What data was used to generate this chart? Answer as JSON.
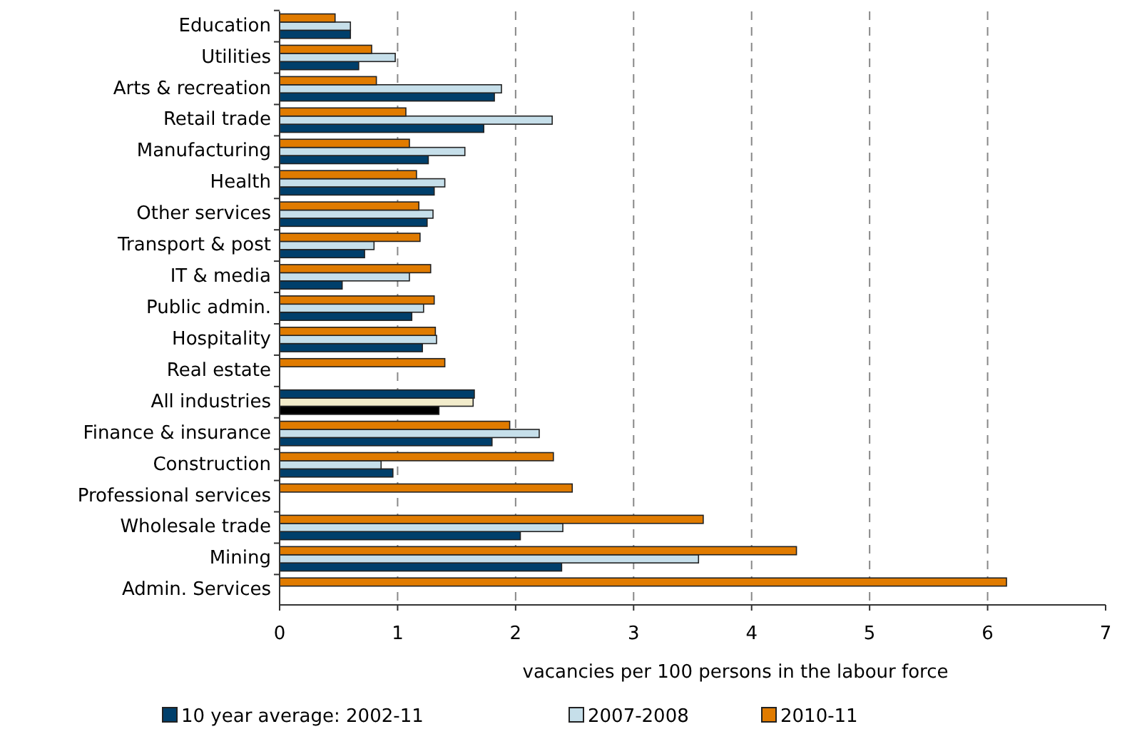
{
  "chart_data": {
    "type": "bar",
    "orientation": "horizontal",
    "xlabel": "vacancies per 100 persons in the labour force",
    "categories": [
      "Education",
      "Utilities",
      "Arts & recreation",
      "Retail trade",
      "Manufacturing",
      "Health",
      "Other services",
      "Transport & post",
      "IT & media",
      "Public admin.",
      "Hospitality",
      "Real estate",
      "All industries",
      "Finance & insurance",
      "Construction",
      "Professional services",
      "Wholesale trade",
      "Mining",
      "Admin. Services"
    ],
    "series": [
      {
        "name": "10 year average: 2002-11",
        "color": "#003f6b",
        "colors": [
          "#003f6b",
          "#003f6b",
          "#003f6b",
          "#003f6b",
          "#003f6b",
          "#003f6b",
          "#003f6b",
          "#003f6b",
          "#003f6b",
          "#003f6b",
          "#003f6b",
          null,
          "#000000",
          "#003f6b",
          "#003f6b",
          null,
          "#003f6b",
          "#003f6b",
          null
        ],
        "values": [
          0.6,
          0.67,
          1.82,
          1.73,
          1.26,
          1.31,
          1.25,
          0.72,
          0.53,
          1.12,
          1.21,
          null,
          1.35,
          1.8,
          0.96,
          null,
          2.04,
          2.39,
          null
        ]
      },
      {
        "name": "2007-2008",
        "color": "#c6dfea",
        "colors": [
          "#c6dfea",
          "#c6dfea",
          "#c6dfea",
          "#c6dfea",
          "#c6dfea",
          "#c6dfea",
          "#c6dfea",
          "#c6dfea",
          "#c6dfea",
          "#c6dfea",
          "#c6dfea",
          null,
          "#f2eccb",
          "#c6dfea",
          "#c6dfea",
          null,
          "#c6dfea",
          "#c6dfea",
          null
        ],
        "values": [
          0.6,
          0.98,
          1.88,
          2.31,
          1.57,
          1.4,
          1.3,
          0.8,
          1.1,
          1.22,
          1.33,
          null,
          1.64,
          2.2,
          0.86,
          null,
          2.4,
          3.55,
          null
        ]
      },
      {
        "name": "2010-11",
        "color": "#e07b00",
        "colors": [
          "#e07b00",
          "#e07b00",
          "#e07b00",
          "#e07b00",
          "#e07b00",
          "#e07b00",
          "#e07b00",
          "#e07b00",
          "#e07b00",
          "#e07b00",
          "#e07b00",
          "#e07b00",
          "#003f6b",
          "#e07b00",
          "#e07b00",
          "#e07b00",
          "#e07b00",
          "#e07b00",
          "#e07b00"
        ],
        "values": [
          0.47,
          0.78,
          0.82,
          1.07,
          1.1,
          1.16,
          1.18,
          1.19,
          1.28,
          1.31,
          1.32,
          1.4,
          1.65,
          1.95,
          2.32,
          2.48,
          3.59,
          4.38,
          6.16
        ]
      }
    ],
    "xlim": [
      0,
      7
    ],
    "xticks": [
      0,
      1,
      2,
      3,
      4,
      5,
      6,
      7
    ],
    "grid": "x",
    "legend": "bottom"
  }
}
